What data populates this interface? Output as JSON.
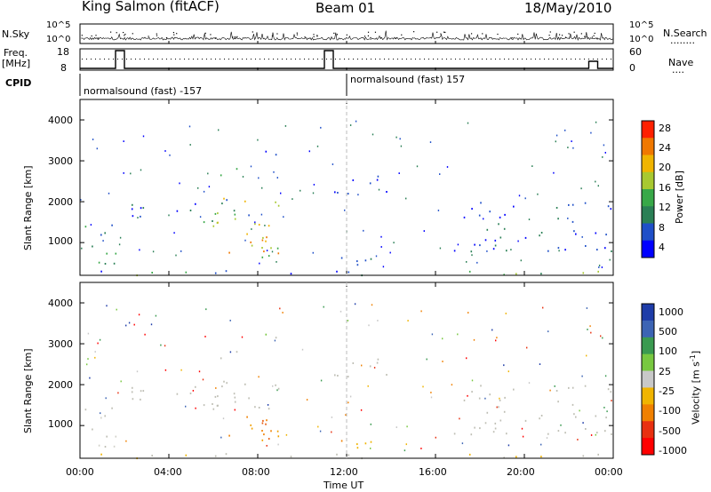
{
  "header": {
    "station": "King Salmon (fitACF)",
    "beam": "Beam 01",
    "date": "18/May/2010"
  },
  "colors": {
    "power_scale": [
      "#0000ff",
      "#1f4fc8",
      "#2a7f55",
      "#38a848",
      "#a8c830",
      "#f0b400",
      "#f07800",
      "#ff2000"
    ],
    "velocity_scale": [
      "#1e3ca8",
      "#3c64b4",
      "#3a9a50",
      "#78c840",
      "#c8c8c8",
      "#f0b400",
      "#f08000",
      "#e83010",
      "#ff0000"
    ],
    "ground_scatter": "#bebeb4"
  },
  "chart_data": [
    {
      "type": "line",
      "id": "nsky-nsearch",
      "left_label": "N.Sky",
      "right_label": "N.Search",
      "left_ticks": [
        "10^5",
        "10^0"
      ],
      "right_ticks": [
        "10^5",
        "10^0"
      ],
      "right_legend": "........"
    },
    {
      "type": "line",
      "id": "freq-nave",
      "left_label_1": "Freq.",
      "left_label_2": "[MHz]",
      "right_label": "Nave",
      "right_legend": "....",
      "left_ticks": [
        "18",
        "8"
      ],
      "right_ticks": [
        "60",
        "0"
      ],
      "series": [
        {
          "values_hours": [
            0,
            1.6,
            1.6,
            2.0,
            2.0,
            11.0,
            11.0,
            11.4,
            11.4,
            22.9,
            22.9,
            23.3,
            23.3,
            24
          ],
          "values_level": [
            8,
            8,
            18,
            18,
            8,
            8,
            18,
            18,
            8,
            8,
            12,
            12,
            8,
            8
          ]
        }
      ]
    },
    {
      "type": "table",
      "id": "cpid",
      "label": "CPID",
      "segments": [
        {
          "start_hour": 0,
          "text": "normalsound (fast) -157"
        },
        {
          "start_hour": 12,
          "text": "normalsound (fast) 157"
        }
      ]
    },
    {
      "type": "heatmap",
      "id": "power",
      "ylabel": "Slant Range [km]",
      "ylim": [
        200,
        4500
      ],
      "yticks": [
        "1000",
        "2000",
        "3000",
        "4000"
      ],
      "ytick_values": [
        1000,
        2000,
        3000,
        4000
      ],
      "xlim_hours": [
        0,
        24
      ],
      "colorbar_label": "Power [dB]",
      "colorbar_ticks": [
        "28",
        "24",
        "20",
        "16",
        "12",
        "8",
        "4"
      ],
      "colorbar_range": [
        0,
        32
      ]
    },
    {
      "type": "heatmap",
      "id": "velocity",
      "ylabel": "Slant Range [km]",
      "ylim": [
        200,
        4500
      ],
      "yticks": [
        "1000",
        "2000",
        "3000",
        "4000"
      ],
      "ytick_values": [
        1000,
        2000,
        3000,
        4000
      ],
      "xlabel": "Time UT",
      "xticks": [
        "00:00",
        "04:00",
        "08:00",
        "12:00",
        "16:00",
        "20:00",
        "00:00"
      ],
      "xtick_hours": [
        0,
        4,
        8,
        12,
        16,
        20,
        24
      ],
      "colorbar_label": "Velocity [m s",
      "colorbar_label_sup": "-1",
      "colorbar_label_end": "]",
      "colorbar_ticks": [
        "1000",
        "500",
        "100",
        "25",
        "-25",
        "-100",
        "-500",
        "-1000"
      ]
    }
  ]
}
